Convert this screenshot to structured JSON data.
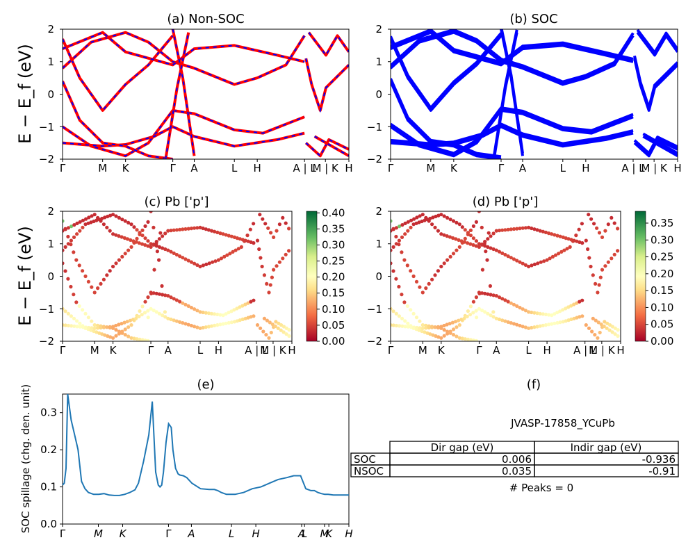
{
  "panels": {
    "a_title": "(a) Non-SOC",
    "b_title": "(b) SOC",
    "c_title": "(c)  Pb ['p']",
    "d_title": "(d) Pb ['p']",
    "e_title": "(e)",
    "f_title": "(f)"
  },
  "band_ylabel": "E − E_f (eV)",
  "spillage_ylabel": "SOC spillage (chg. den. unit)",
  "band_y_ticks": [
    "2",
    "1",
    "0",
    "−1",
    "−2"
  ],
  "kpath_labels": [
    "Γ",
    "M",
    "K",
    "Γ",
    "A",
    "L",
    "H",
    "A | L",
    "M | K",
    "H"
  ],
  "spillage_kpath_labels": [
    "Γ",
    "M",
    "K",
    "Γ",
    "A",
    "L",
    "H",
    "A",
    "L",
    "M",
    "K",
    "H"
  ],
  "colorbar_c": [
    "0.40",
    "0.35",
    "0.30",
    "0.25",
    "0.20",
    "0.15",
    "0.10",
    "0.05",
    "0.00"
  ],
  "colorbar_d": [
    "0.35",
    "0.30",
    "0.25",
    "0.20",
    "0.15",
    "0.10",
    "0.05",
    "0.00"
  ],
  "colors": {
    "nonsoc_line": "#ff0000",
    "nonsoc_dash": "#0000ff",
    "soc_line": "#0000ff",
    "spillage": "#1f77b4"
  },
  "table": {
    "heading": "JVASP-17858_YCuPb",
    "col1": "Dir gap (eV)",
    "col2": "Indir gap (eV)",
    "rows": [
      {
        "label": "SOC",
        "dir": "0.006",
        "indir": "-0.936"
      },
      {
        "label": "NSOC",
        "dir": "0.035",
        "indir": "-0.91"
      }
    ],
    "peaks": "# Peaks = 0"
  },
  "chart_data": [
    {
      "type": "line",
      "title": "(a) Non-SOC",
      "ylabel": "E − E_f (eV)",
      "ylim": [
        -2,
        2
      ],
      "xticks": [
        "Γ",
        "M",
        "K",
        "Γ",
        "A",
        "L",
        "H",
        "A | L",
        "M | K",
        "H"
      ]
    },
    {
      "type": "line",
      "title": "(b) SOC",
      "ylim": [
        -2,
        2
      ],
      "xticks": [
        "Γ",
        "M",
        "K",
        "Γ",
        "A",
        "L",
        "H",
        "A | L",
        "M | K",
        "H"
      ]
    },
    {
      "type": "scatter",
      "title": "(c)  Pb ['p']",
      "ylabel": "E − E_f (eV)",
      "ylim": [
        -2,
        2
      ],
      "colorbar_range": [
        0.0,
        0.4
      ]
    },
    {
      "type": "scatter",
      "title": "(d) Pb ['p']",
      "ylim": [
        -2,
        2
      ],
      "colorbar_range": [
        0.0,
        0.38
      ]
    },
    {
      "type": "line",
      "title": "(e)",
      "ylabel": "SOC spillage (chg. den. unit)",
      "ylim": [
        0.0,
        0.35
      ],
      "yticks": [
        0.0,
        0.1,
        0.2,
        0.3
      ],
      "series": [
        {
          "x": [
            0,
            0.01,
            0.02,
            0.03,
            0.05,
            0.07,
            0.09,
            0.11,
            0.13,
            0.15,
            0.18,
            0.21,
            0.24,
            0.27,
            0.3,
            0.33,
            0.36,
            0.39,
            0.42,
            0.44,
            0.47,
            0.5,
            0.52,
            0.54,
            0.555,
            0.565,
            0.575,
            0.585,
            0.6,
            0.615,
            0.63,
            0.64,
            0.655,
            0.67,
            0.68,
            0.7,
            0.72,
            0.75,
            0.8,
            0.85,
            0.88,
            0.9,
            0.92,
            0.95,
            1.0,
            1.05,
            1.1,
            1.15,
            1.2,
            1.25,
            1.3,
            1.34,
            1.38,
            1.41,
            1.44,
            1.46,
            1.48,
            1.5,
            1.52,
            1.54,
            1.57,
            1.6,
            1.63,
            1.66
          ],
          "y": [
            0.105,
            0.11,
            0.15,
            0.35,
            0.28,
            0.24,
            0.2,
            0.115,
            0.095,
            0.085,
            0.08,
            0.08,
            0.082,
            0.078,
            0.077,
            0.077,
            0.08,
            0.085,
            0.092,
            0.11,
            0.17,
            0.24,
            0.33,
            0.14,
            0.105,
            0.1,
            0.105,
            0.14,
            0.22,
            0.27,
            0.26,
            0.2,
            0.15,
            0.135,
            0.132,
            0.13,
            0.125,
            0.11,
            0.095,
            0.093,
            0.093,
            0.09,
            0.085,
            0.08,
            0.08,
            0.085,
            0.095,
            0.1,
            0.11,
            0.12,
            0.125,
            0.13,
            0.13,
            0.095,
            0.09,
            0.09,
            0.085,
            0.082,
            0.08,
            0.08,
            0.078,
            0.078,
            0.078,
            0.078
          ]
        }
      ]
    }
  ]
}
